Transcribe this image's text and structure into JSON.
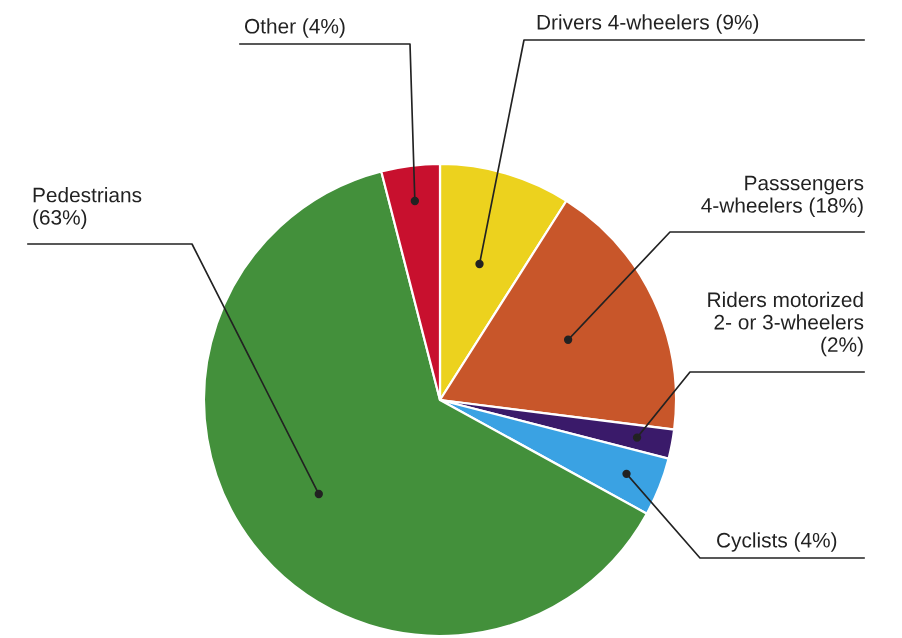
{
  "chart_data": {
    "type": "pie",
    "categories": [
      "Drivers 4-wheelers (9%)",
      "Passsengers\n4-wheelers (18%)",
      "Riders motorized\n2- or 3-wheelers\n(2%)",
      "Cyclists (4%)",
      "Pedestrians\n(63%)",
      "Other (4%)"
    ],
    "values": [
      9,
      18,
      2,
      4,
      63,
      4
    ],
    "colors": [
      "#ecd21e",
      "#c8562a",
      "#3a1a6a",
      "#3aa2e3",
      "#43903b",
      "#c8102e"
    ]
  }
}
